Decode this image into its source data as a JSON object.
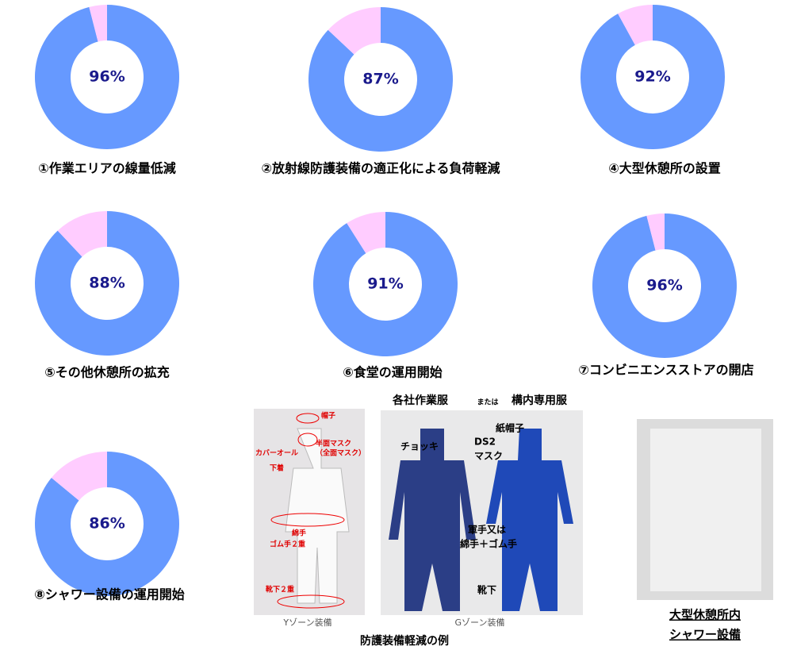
{
  "chart_data": [
    {
      "type": "pie",
      "title": "①作業エリアの線量低減",
      "values": [
        96,
        4
      ],
      "value_labels": [
        "96%",
        null
      ],
      "colors": [
        "#6699ff",
        "#ffccff"
      ]
    },
    {
      "type": "pie",
      "title": "②放射線防護装備の適正化による負荷軽減",
      "values": [
        87,
        13
      ],
      "value_labels": [
        "87%",
        null
      ],
      "colors": [
        "#6699ff",
        "#ffccff"
      ]
    },
    {
      "type": "pie",
      "title": "④大型休憩所の設置",
      "values": [
        92,
        8
      ],
      "value_labels": [
        "92%",
        null
      ],
      "colors": [
        "#6699ff",
        "#ffccff"
      ]
    },
    {
      "type": "pie",
      "title": "⑤その他休憩所の拡充",
      "values": [
        88,
        12
      ],
      "value_labels": [
        "88%",
        null
      ],
      "colors": [
        "#6699ff",
        "#ffccff"
      ]
    },
    {
      "type": "pie",
      "title": "⑥食堂の運用開始",
      "values": [
        91,
        9
      ],
      "value_labels": [
        "91%",
        null
      ],
      "colors": [
        "#6699ff",
        "#ffccff"
      ]
    },
    {
      "type": "pie",
      "title": "⑦コンビニエンスストアの開店",
      "values": [
        96,
        4
      ],
      "value_labels": [
        "96%",
        null
      ],
      "colors": [
        "#6699ff",
        "#ffccff"
      ]
    },
    {
      "type": "pie",
      "title": "⑧シャワー設備の運用開始",
      "values": [
        86,
        14
      ],
      "value_labels": [
        "86%",
        null
      ],
      "colors": [
        "#6699ff",
        "#ffccff"
      ]
    }
  ],
  "photos": {
    "header_a": "各社作業服",
    "header_or": "または",
    "header_b": "構内専用服",
    "y_labels": [
      "帽子",
      "半面マスク",
      "（全面マスク）",
      "カバーオール",
      "下着",
      "綿手",
      "ゴム手２重",
      "靴下２重"
    ],
    "g_labels": [
      "紙帽子",
      "DS2",
      "マスク",
      "チョッキ",
      "軍手又は",
      "綿手＋ゴム手",
      "靴下"
    ],
    "y_caption": "Yゾーン装備",
    "g_caption": "Gゾーン装備",
    "caption": "防護装備軽減の例",
    "shower_caption": [
      "大型休憩所内",
      "シャワー設備"
    ]
  }
}
